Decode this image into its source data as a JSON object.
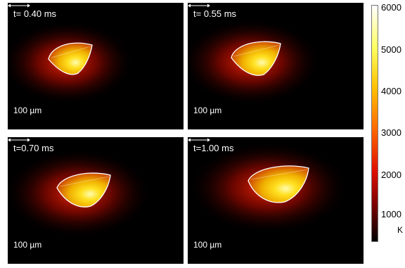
{
  "panels": [
    {
      "time": "t= 0.40 ms",
      "scale": "100 µm"
    },
    {
      "time": "t= 0.55 ms",
      "scale": "100 µm"
    },
    {
      "time": "t=0.70 ms",
      "scale": "100 µm"
    },
    {
      "time": "t=1.00 ms",
      "scale": "100 µm"
    }
  ],
  "colorbar": {
    "ticks": [
      "6000",
      "5000",
      "4000",
      "3000",
      "2000",
      "1000"
    ],
    "unit": "K",
    "colors": [
      "#ffffff",
      "#ffff60",
      "#ffc000",
      "#ff6a00",
      "#e01000",
      "#700000",
      "#000000"
    ]
  }
}
